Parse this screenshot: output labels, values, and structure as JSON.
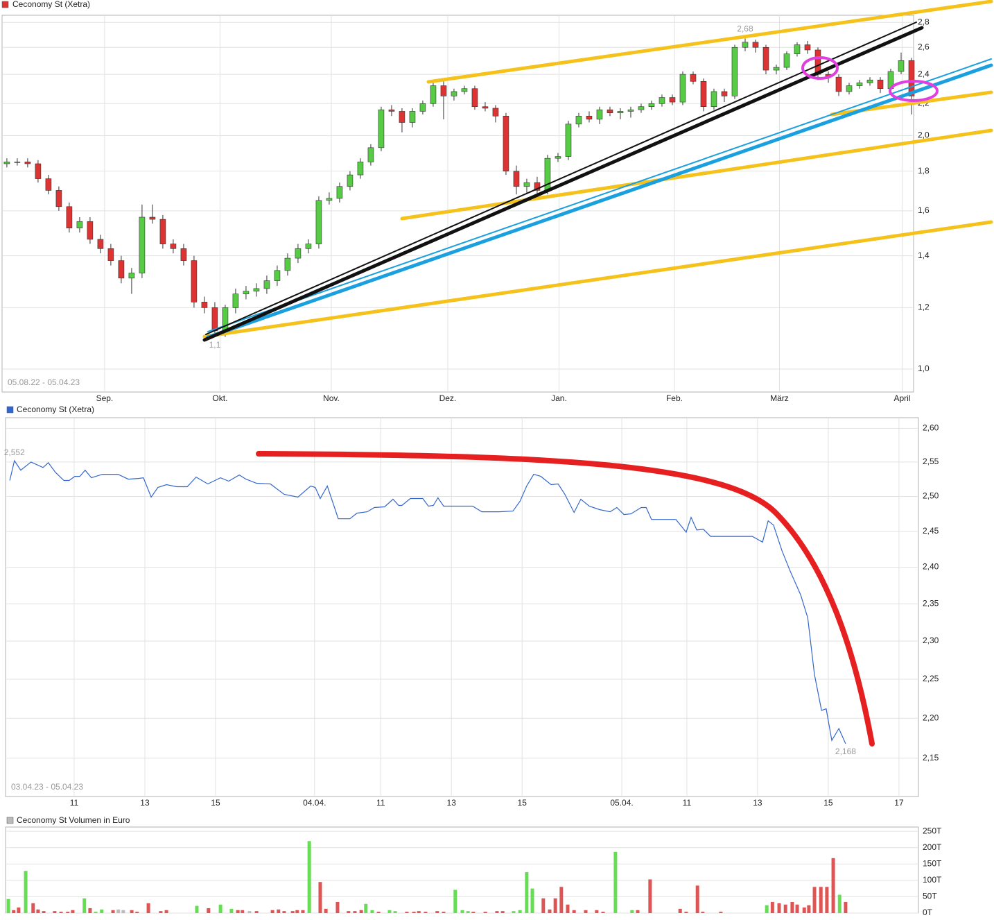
{
  "chart_data": [
    {
      "type": "candlestick",
      "title": "Ceconomy St (Xetra)",
      "date_range": "05.08.22 - 05.04.23",
      "log": true,
      "grid": true,
      "up_color": "#55cc44",
      "down_color": "#dd3333",
      "xlim": [
        -0.46,
        87.2
      ],
      "xticks": [
        {
          "value": 9.4,
          "label": "Sep."
        },
        {
          "value": 20.5,
          "label": "Okt."
        },
        {
          "value": 31.2,
          "label": "Nov."
        },
        {
          "value": 42.4,
          "label": "Dez."
        },
        {
          "value": 53.1,
          "label": "Jan."
        },
        {
          "value": 64.2,
          "label": "Feb."
        },
        {
          "value": 74.3,
          "label": "März"
        },
        {
          "value": 86.1,
          "label": "April"
        }
      ],
      "ylim": [
        0.934,
        2.86
      ],
      "yticks": [
        {
          "value": 1.0,
          "label": "1,0"
        },
        {
          "value": 1.2,
          "label": "1,2"
        },
        {
          "value": 1.4,
          "label": "1,4"
        },
        {
          "value": 1.6,
          "label": "1,6"
        },
        {
          "value": 1.8,
          "label": "1,8"
        },
        {
          "value": 2.0,
          "label": "2,0"
        },
        {
          "value": 2.2,
          "label": "2,2"
        },
        {
          "value": 2.4,
          "label": "2,4"
        },
        {
          "value": 2.6,
          "label": "2,6"
        },
        {
          "value": 2.8,
          "label": "2,8"
        }
      ],
      "open": [
        1.84,
        1.85,
        1.85,
        1.84,
        1.76,
        1.7,
        1.62,
        1.52,
        1.55,
        1.47,
        1.43,
        1.38,
        1.31,
        1.33,
        1.57,
        1.56,
        1.45,
        1.43,
        1.38,
        1.22,
        1.2,
        1.12,
        1.2,
        1.25,
        1.26,
        1.27,
        1.3,
        1.34,
        1.39,
        1.43,
        1.45,
        1.65,
        1.66,
        1.72,
        1.78,
        1.85,
        1.93,
        2.16,
        2.15,
        2.08,
        2.15,
        2.2,
        2.32,
        2.25,
        2.28,
        2.3,
        2.18,
        2.17,
        2.12,
        1.8,
        1.72,
        1.74,
        1.7,
        1.87,
        1.88,
        2.07,
        2.12,
        2.1,
        2.16,
        2.14,
        2.15,
        2.16,
        2.18,
        2.2,
        2.24,
        2.21,
        2.4,
        2.35,
        2.18,
        2.28,
        2.25,
        2.6,
        2.64,
        2.6,
        2.43,
        2.45,
        2.55,
        2.62,
        2.58,
        2.4,
        2.38,
        2.28,
        2.32,
        2.34,
        2.36,
        2.3,
        2.42,
        2.5
      ],
      "high": [
        1.87,
        1.87,
        1.87,
        1.86,
        1.78,
        1.72,
        1.64,
        1.57,
        1.57,
        1.49,
        1.45,
        1.4,
        1.35,
        1.63,
        1.63,
        1.58,
        1.47,
        1.45,
        1.4,
        1.24,
        1.22,
        1.21,
        1.27,
        1.28,
        1.29,
        1.32,
        1.36,
        1.41,
        1.45,
        1.47,
        1.67,
        1.69,
        1.74,
        1.8,
        1.87,
        1.95,
        2.18,
        2.19,
        2.17,
        2.17,
        2.22,
        2.34,
        2.35,
        2.3,
        2.32,
        2.32,
        2.21,
        2.19,
        2.14,
        1.83,
        1.76,
        1.77,
        1.89,
        1.9,
        2.09,
        2.14,
        2.15,
        2.18,
        2.18,
        2.17,
        2.18,
        2.2,
        2.22,
        2.26,
        2.26,
        2.42,
        2.42,
        2.37,
        2.3,
        2.3,
        2.62,
        2.67,
        2.66,
        2.62,
        2.47,
        2.57,
        2.64,
        2.65,
        2.6,
        2.42,
        2.4,
        2.34,
        2.36,
        2.38,
        2.38,
        2.44,
        2.56,
        2.52
      ],
      "low": [
        1.82,
        1.83,
        1.82,
        1.74,
        1.68,
        1.6,
        1.5,
        1.5,
        1.45,
        1.41,
        1.36,
        1.29,
        1.25,
        1.31,
        1.54,
        1.43,
        1.41,
        1.36,
        1.2,
        1.18,
        1.1,
        1.1,
        1.18,
        1.23,
        1.24,
        1.25,
        1.28,
        1.32,
        1.37,
        1.41,
        1.43,
        1.63,
        1.64,
        1.7,
        1.76,
        1.83,
        1.91,
        2.12,
        2.02,
        2.05,
        2.13,
        2.18,
        2.1,
        2.22,
        2.26,
        2.16,
        2.15,
        2.08,
        1.78,
        1.68,
        1.68,
        1.66,
        1.68,
        1.85,
        1.86,
        2.05,
        2.08,
        2.07,
        2.12,
        2.1,
        2.11,
        2.14,
        2.16,
        2.18,
        2.19,
        2.19,
        2.33,
        2.15,
        2.16,
        2.21,
        2.23,
        2.57,
        2.56,
        2.4,
        2.4,
        2.43,
        2.53,
        2.55,
        2.36,
        2.34,
        2.25,
        2.26,
        2.3,
        2.32,
        2.27,
        2.28,
        2.4,
        2.13
      ],
      "close": [
        1.85,
        1.85,
        1.84,
        1.76,
        1.7,
        1.62,
        1.52,
        1.55,
        1.47,
        1.43,
        1.38,
        1.31,
        1.33,
        1.57,
        1.56,
        1.45,
        1.43,
        1.38,
        1.22,
        1.2,
        1.12,
        1.2,
        1.25,
        1.26,
        1.27,
        1.3,
        1.34,
        1.39,
        1.43,
        1.45,
        1.65,
        1.66,
        1.72,
        1.78,
        1.85,
        1.93,
        2.16,
        2.15,
        2.08,
        2.15,
        2.2,
        2.32,
        2.25,
        2.28,
        2.3,
        2.18,
        2.17,
        2.12,
        1.8,
        1.72,
        1.74,
        1.7,
        1.87,
        1.88,
        2.07,
        2.12,
        2.1,
        2.16,
        2.14,
        2.15,
        2.16,
        2.18,
        2.2,
        2.24,
        2.21,
        2.4,
        2.35,
        2.18,
        2.28,
        2.25,
        2.6,
        2.64,
        2.6,
        2.43,
        2.45,
        2.55,
        2.62,
        2.58,
        2.4,
        2.38,
        2.28,
        2.32,
        2.34,
        2.36,
        2.3,
        2.42,
        2.5,
        2.25
      ],
      "annotations": [
        {
          "text": "2,68",
          "x": 71,
          "y": 2.68
        },
        {
          "text": "1,1",
          "x": 20,
          "y": 1.1
        }
      ]
    },
    {
      "type": "line",
      "title": "Ceconomy St (Xetra)",
      "date_range": "03.04.23 - 05.04.23",
      "log": true,
      "grid": true,
      "xlim": [
        9.06,
        34.88
      ],
      "xticks": [
        {
          "value": 11,
          "label": "11"
        },
        {
          "value": 13,
          "label": "13"
        },
        {
          "value": 15,
          "label": "15"
        },
        {
          "value": 17.8,
          "label": "04.04."
        },
        {
          "value": 19.67,
          "label": "11"
        },
        {
          "value": 21.67,
          "label": "13"
        },
        {
          "value": 23.67,
          "label": "15"
        },
        {
          "value": 26.49,
          "label": "05.04."
        },
        {
          "value": 28.33,
          "label": "11"
        },
        {
          "value": 30.33,
          "label": "13"
        },
        {
          "value": 32.33,
          "label": "15"
        },
        {
          "value": 34.33,
          "label": "17"
        }
      ],
      "ylim": [
        2.103,
        2.616
      ],
      "yticks": [
        {
          "value": 2.15,
          "label": "2,15"
        },
        {
          "value": 2.2,
          "label": "2,20"
        },
        {
          "value": 2.25,
          "label": "2,25"
        },
        {
          "value": 2.3,
          "label": "2,30"
        },
        {
          "value": 2.35,
          "label": "2,35"
        },
        {
          "value": 2.4,
          "label": "2,40"
        },
        {
          "value": 2.45,
          "label": "2,45"
        },
        {
          "value": 2.5,
          "label": "2,50"
        },
        {
          "value": 2.55,
          "label": "2,55"
        },
        {
          "value": 2.6,
          "label": "2,60"
        }
      ],
      "x": [
        9.18,
        9.31,
        9.49,
        9.78,
        10.12,
        10.27,
        10.47,
        10.71,
        10.86,
        11.02,
        11.16,
        11.31,
        11.49,
        11.8,
        12.24,
        12.53,
        12.82,
        12.96,
        13.18,
        13.37,
        13.61,
        13.9,
        14.2,
        14.45,
        14.78,
        15.14,
        15.37,
        15.67,
        15.86,
        16.16,
        16.55,
        16.94,
        17.33,
        17.69,
        17.82,
        17.96,
        18.16,
        18.47,
        18.8,
        19.0,
        19.29,
        19.49,
        19.78,
        20.02,
        20.18,
        20.27,
        20.51,
        20.86,
        21.02,
        21.16,
        21.29,
        21.45,
        21.84,
        22.27,
        22.53,
        23.02,
        23.41,
        23.61,
        23.8,
        24.0,
        24.2,
        24.49,
        24.69,
        24.88,
        25.14,
        25.33,
        25.57,
        25.86,
        26.16,
        26.35,
        26.55,
        26.75,
        27.04,
        27.18,
        27.33,
        27.73,
        28.02,
        28.31,
        28.45,
        28.61,
        28.8,
        29.0,
        29.29,
        29.69,
        30.18,
        30.47,
        30.63,
        30.78,
        31.02,
        31.25,
        31.55,
        31.75,
        31.94,
        32.14,
        32.27,
        32.43,
        32.63,
        32.82
      ],
      "series": [
        {
          "color": "#3366cc",
          "values": [
            2.523,
            2.552,
            2.538,
            2.55,
            2.542,
            2.549,
            2.535,
            2.523,
            2.523,
            2.529,
            2.529,
            2.538,
            2.527,
            2.532,
            2.532,
            2.525,
            2.526,
            2.527,
            2.499,
            2.513,
            2.517,
            2.514,
            2.514,
            2.528,
            2.518,
            2.527,
            2.522,
            2.531,
            2.525,
            2.519,
            2.518,
            2.503,
            2.499,
            2.515,
            2.513,
            2.497,
            2.515,
            2.468,
            2.468,
            2.476,
            2.478,
            2.484,
            2.485,
            2.496,
            2.487,
            2.487,
            2.497,
            2.497,
            2.486,
            2.487,
            2.498,
            2.486,
            2.486,
            2.486,
            2.478,
            2.478,
            2.479,
            2.493,
            2.515,
            2.532,
            2.529,
            2.517,
            2.518,
            2.503,
            2.477,
            2.496,
            2.486,
            2.481,
            2.478,
            2.484,
            2.474,
            2.475,
            2.484,
            2.484,
            2.467,
            2.467,
            2.467,
            2.449,
            2.47,
            2.452,
            2.453,
            2.443,
            2.443,
            2.443,
            2.443,
            2.435,
            2.465,
            2.459,
            2.423,
            2.395,
            2.362,
            2.331,
            2.256,
            2.21,
            2.212,
            2.172,
            2.187,
            2.168
          ]
        }
      ],
      "annotations": [
        {
          "text": "2,552",
          "x": 9.31,
          "y": 2.552
        },
        {
          "text": "2,168",
          "x": 32.82,
          "y": 2.168
        }
      ]
    },
    {
      "type": "bar",
      "title": "Ceconomy St Volumen in Euro",
      "log": false,
      "grid": true,
      "xlim": [
        9.06,
        34.88
      ],
      "ylim": [
        0,
        263
      ],
      "yticks": [
        {
          "value": 0,
          "label": "0T"
        },
        {
          "value": 50,
          "label": "50T"
        },
        {
          "value": 100,
          "label": "100T"
        },
        {
          "value": 150,
          "label": "150T"
        },
        {
          "value": 200,
          "label": "200T"
        },
        {
          "value": 250,
          "label": "250T"
        }
      ],
      "series": [
        {
          "color": "#66dd55",
          "x": [
            9.14,
            9.63,
            11.29,
            11.61,
            11.78,
            14.47,
            15.14,
            15.45,
            17.65,
            19.25,
            19.43,
            19.92,
            20.08,
            21.78,
            21.98,
            22.14,
            23.43,
            23.61,
            23.8,
            23.96,
            26.31,
            26.78,
            30.59,
            32.65
          ],
          "values": [
            43,
            129,
            45,
            4,
            11,
            22,
            26,
            13,
            220,
            28,
            9,
            9,
            6,
            71,
            9,
            6,
            6,
            9,
            125,
            75,
            187,
            9,
            24,
            56
          ]
        },
        {
          "color": "#dd5555",
          "x": [
            9.29,
            9.43,
            9.84,
            9.98,
            10.14,
            10.45,
            10.63,
            10.82,
            10.96,
            11.45,
            12.1,
            12.63,
            12.78,
            13.1,
            13.45,
            13.61,
            14.8,
            15.63,
            15.76,
            16.16,
            16.61,
            16.78,
            16.94,
            17.18,
            17.31,
            17.47,
            17.96,
            18.12,
            18.45,
            18.76,
            18.94,
            19.12,
            19.61,
            20.41,
            20.61,
            20.75,
            20.94,
            21.27,
            21.45,
            22.29,
            22.63,
            22.96,
            23.12,
            24.27,
            24.45,
            24.61,
            24.78,
            24.96,
            25.14,
            25.47,
            25.78,
            25.96,
            26.94,
            27.29,
            28.14,
            28.31,
            28.63,
            28.78,
            29.29,
            30.75,
            30.94,
            31.12,
            31.31,
            31.45,
            31.65,
            31.78,
            31.94,
            32.12,
            32.29,
            32.47,
            32.82
          ],
          "values": [
            9,
            17,
            30,
            11,
            6,
            6,
            4,
            4,
            9,
            15,
            9,
            9,
            4,
            30,
            6,
            9,
            15,
            9,
            9,
            6,
            9,
            11,
            6,
            6,
            9,
            9,
            95,
            13,
            34,
            6,
            6,
            9,
            4,
            4,
            4,
            6,
            4,
            6,
            4,
            4,
            4,
            6,
            6,
            45,
            11,
            45,
            80,
            26,
            9,
            9,
            9,
            4,
            9,
            103,
            13,
            4,
            84,
            4,
            4,
            34,
            30,
            26,
            34,
            26,
            17,
            24,
            80,
            80,
            80,
            168,
            34
          ]
        },
        {
          "color": "#bbbbbb",
          "x": [
            12.25,
            12.39,
            15.96
          ],
          "values": [
            11,
            9,
            6
          ]
        }
      ]
    }
  ]
}
